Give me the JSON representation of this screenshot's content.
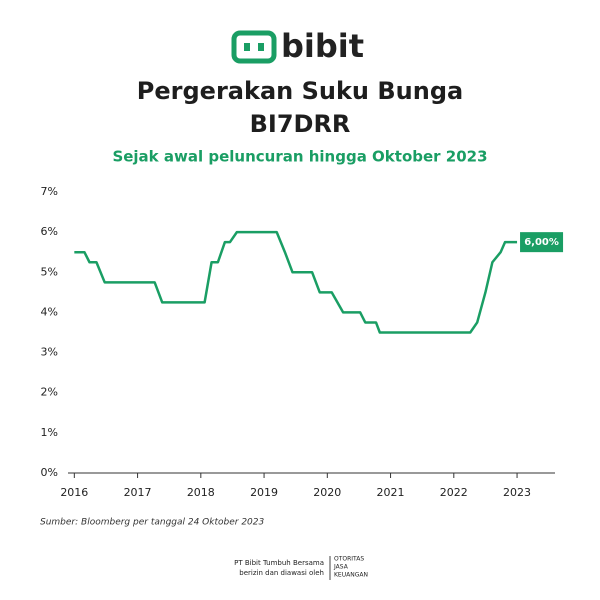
{
  "logo": "bibit",
  "chart_data": {
    "type": "line",
    "title": [
      "Pergerakan Suku Bunga",
      "BI7DRR"
    ],
    "subtitle": "Sejak awal peluncuran hingga Oktober 2023",
    "x": [
      2016.0,
      2016.16,
      2016.24,
      2016.35,
      2016.48,
      2017.27,
      2017.39,
      2018.06,
      2018.17,
      2018.27,
      2018.38,
      2018.46,
      2018.57,
      2019.2,
      2019.33,
      2019.45,
      2019.76,
      2019.88,
      2020.07,
      2020.25,
      2020.52,
      2020.6,
      2020.77,
      2020.83,
      2022.26,
      2022.37,
      2022.5,
      2022.61,
      2022.74,
      2022.81,
      2023.0
    ],
    "values": [
      5.5,
      5.5,
      5.25,
      5.25,
      4.75,
      4.75,
      4.25,
      4.25,
      5.25,
      5.25,
      5.75,
      5.75,
      6.0,
      6.0,
      5.5,
      5.0,
      5.0,
      4.5,
      4.5,
      4.0,
      4.0,
      3.75,
      3.75,
      3.5,
      3.5,
      3.75,
      4.5,
      5.25,
      5.5,
      5.75,
      5.75
    ],
    "color": "#1a9e64",
    "xlim": [
      2015.9,
      2023.6
    ],
    "xticks": [
      2016,
      2017,
      2018,
      2019,
      2020,
      2021,
      2022,
      2023
    ],
    "ylim": [
      0,
      7
    ],
    "yticks": [
      {
        "value": 0,
        "label": "0%"
      },
      {
        "value": 1,
        "label": "1%"
      },
      {
        "value": 2,
        "label": "2%"
      },
      {
        "value": 3,
        "label": "3%"
      },
      {
        "value": 4,
        "label": "4%"
      },
      {
        "value": 5,
        "label": "5%"
      },
      {
        "value": 6,
        "label": "6%"
      },
      {
        "value": 7,
        "label": "7%"
      }
    ],
    "annotation": {
      "value": 6,
      "label": "6,00%"
    }
  },
  "source": "Sumber: Bloomberg per tanggal 24 Oktober 2023",
  "footer": {
    "company": "PT Bibit Tumbuh Bersama",
    "note": "berizin dan diawasi oleh",
    "regulator": [
      "OTORITAS",
      "JASA",
      "KEUANGAN"
    ]
  }
}
